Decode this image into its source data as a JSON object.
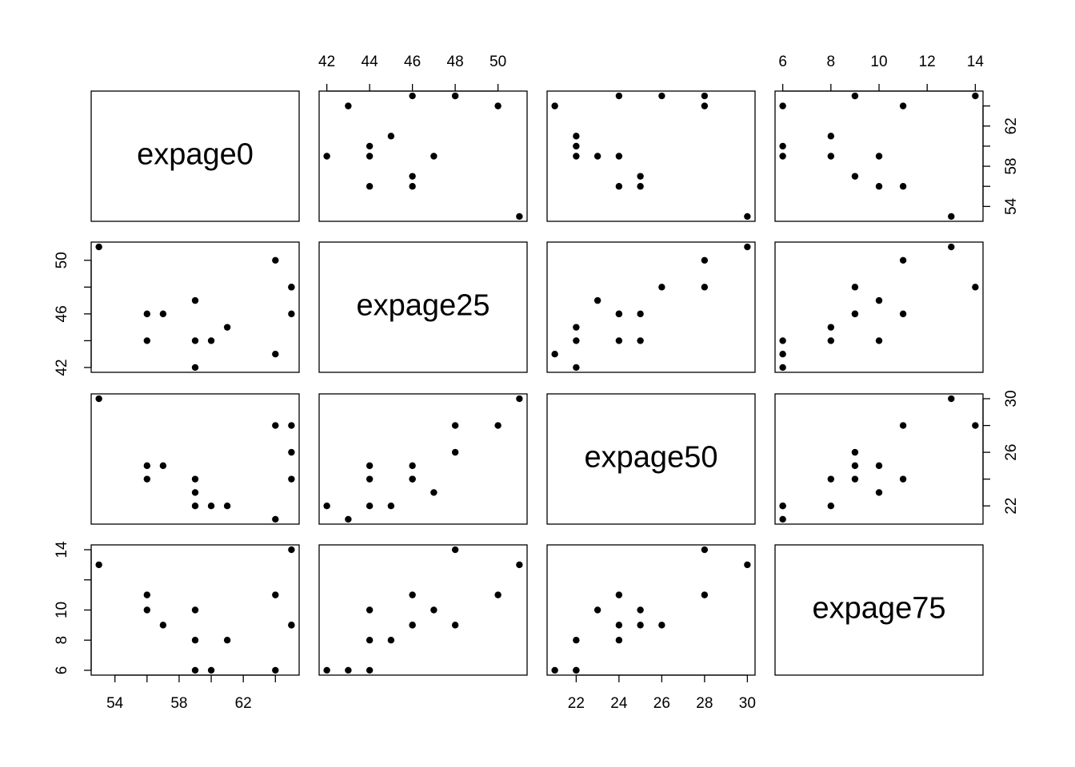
{
  "chart_data": {
    "type": "scatter_matrix",
    "variables": [
      {
        "name": "expage0",
        "values": [
          53,
          56,
          56,
          57,
          59,
          59,
          59,
          60,
          61,
          64,
          64,
          65,
          65,
          65
        ],
        "lim": [
          52.52,
          65.48
        ]
      },
      {
        "name": "expage25",
        "values": [
          51,
          44,
          46,
          46,
          44,
          47,
          42,
          44,
          45,
          50,
          43,
          48,
          48,
          46
        ],
        "lim": [
          41.64,
          51.36
        ]
      },
      {
        "name": "expage50",
        "values": [
          30,
          25,
          24,
          25,
          24,
          23,
          22,
          22,
          22,
          28,
          21,
          28,
          26,
          24
        ],
        "lim": [
          20.64,
          30.36
        ]
      },
      {
        "name": "expage75",
        "values": [
          13,
          10,
          11,
          9,
          8,
          10,
          6,
          6,
          8,
          11,
          6,
          14,
          9,
          9
        ],
        "lim": [
          5.68,
          14.32
        ]
      }
    ],
    "axes": [
      {
        "side": "top",
        "variable": 1,
        "ticks": [
          42,
          44,
          46,
          48,
          50
        ],
        "labels": [
          42,
          44,
          46,
          48,
          50
        ]
      },
      {
        "side": "top",
        "variable": 3,
        "ticks": [
          6,
          8,
          10,
          12,
          14
        ],
        "labels": [
          6,
          8,
          10,
          12,
          14
        ]
      },
      {
        "side": "bottom",
        "variable": 0,
        "ticks": [
          54,
          56,
          58,
          60,
          62,
          64
        ],
        "labels": [
          54,
          58,
          62
        ]
      },
      {
        "side": "bottom",
        "variable": 2,
        "ticks": [
          22,
          24,
          26,
          28,
          30
        ],
        "labels": [
          22,
          24,
          26,
          28,
          30
        ]
      },
      {
        "side": "left",
        "variable": 1,
        "ticks": [
          42,
          44,
          46,
          48,
          50
        ],
        "labels": [
          42,
          46,
          50
        ]
      },
      {
        "side": "left",
        "variable": 3,
        "ticks": [
          6,
          8,
          10,
          12,
          14
        ],
        "labels": [
          6,
          8,
          10,
          14
        ]
      },
      {
        "side": "right",
        "variable": 0,
        "ticks": [
          54,
          56,
          58,
          60,
          62,
          64
        ],
        "labels": [
          54,
          58,
          62
        ]
      },
      {
        "side": "right",
        "variable": 2,
        "ticks": [
          22,
          24,
          26,
          28,
          30
        ],
        "labels": [
          22,
          26,
          30
        ]
      }
    ],
    "point_color": "#000000"
  }
}
